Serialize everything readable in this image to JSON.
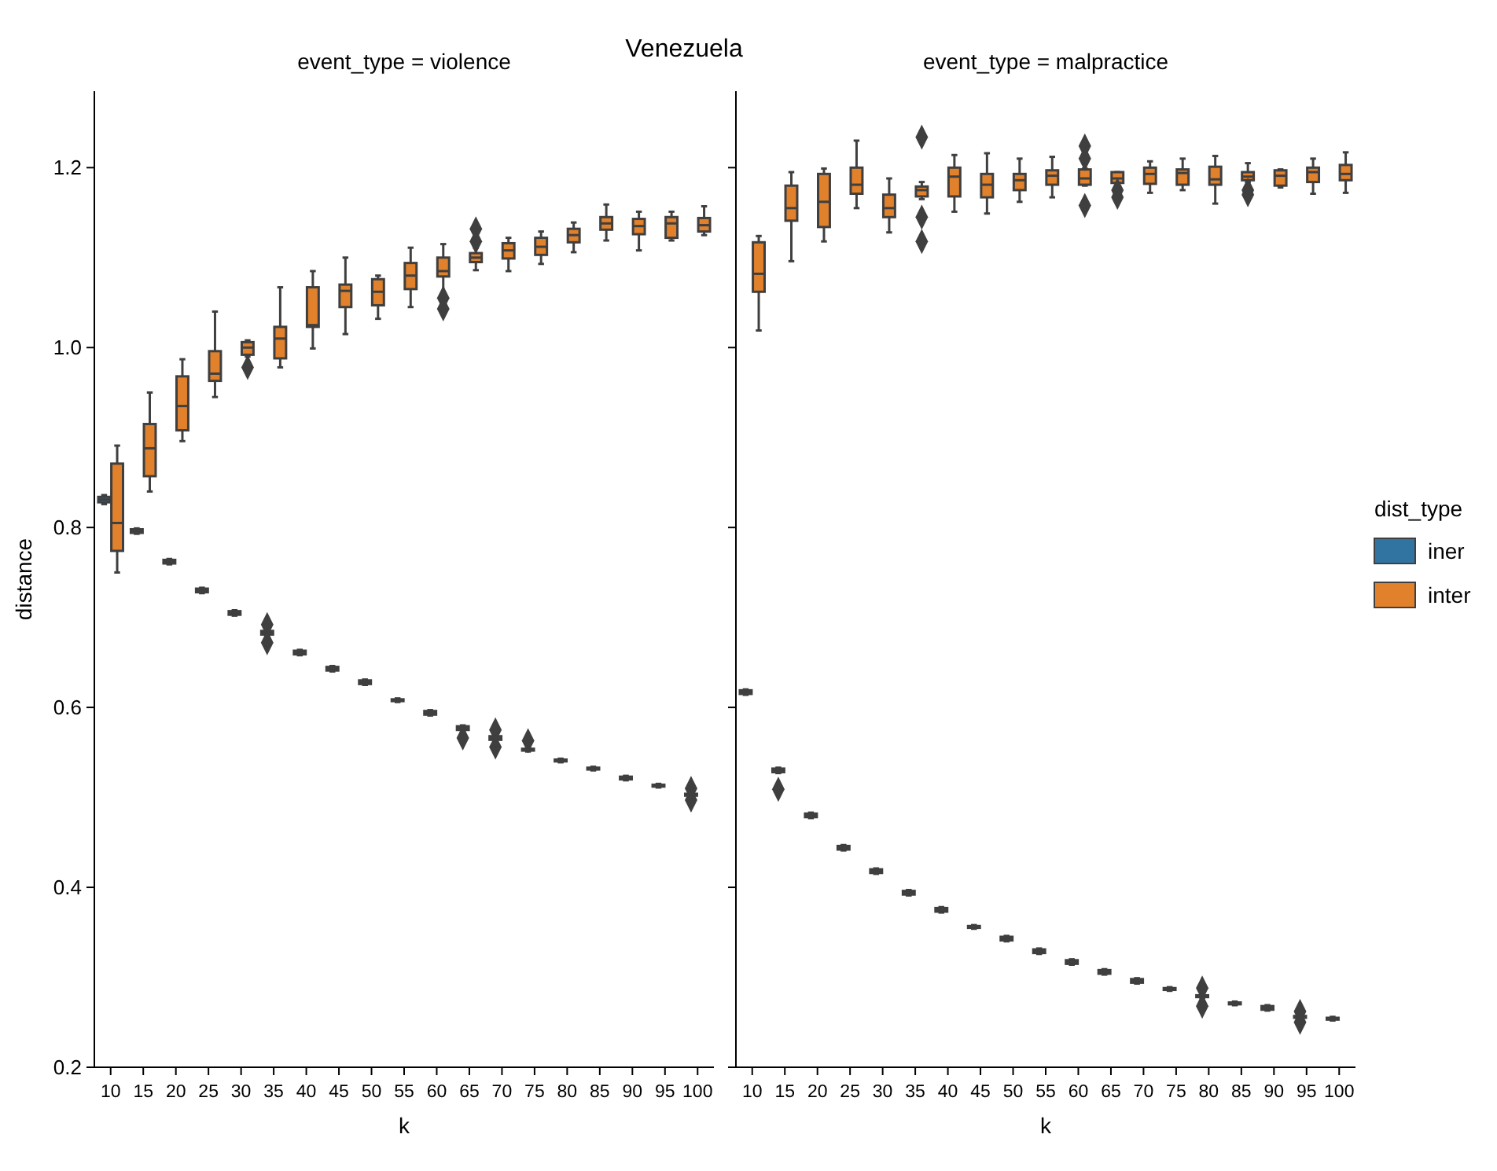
{
  "chart_data": [
    {
      "type": "box",
      "title": "event_type = violence",
      "xlabel": "k",
      "ylabel": "distance",
      "annotations": [
        "Venezuela"
      ],
      "categories": [
        "10",
        "15",
        "20",
        "25",
        "30",
        "35",
        "40",
        "45",
        "50",
        "55",
        "60",
        "65",
        "70",
        "75",
        "80",
        "85",
        "90",
        "95",
        "100"
      ],
      "ylim": [
        0.2,
        1.285
      ],
      "yticks": [
        {
          "value": 0.2,
          "label": "0.2"
        },
        {
          "value": 0.4,
          "label": "0.4"
        },
        {
          "value": 0.6,
          "label": "0.6"
        },
        {
          "value": 0.8,
          "label": "0.8"
        },
        {
          "value": 1.0,
          "label": "1.0"
        },
        {
          "value": 1.2,
          "label": "1.2"
        }
      ],
      "series": [
        {
          "color": "#3274a1",
          "boxes": [
            {
              "low": 0.826,
              "q1": 0.828,
              "median": 0.831,
              "q3": 0.834,
              "high": 0.836
            },
            {
              "low": 0.793,
              "q1": 0.794,
              "median": 0.796,
              "q3": 0.798,
              "high": 0.799
            },
            {
              "low": 0.759,
              "q1": 0.76,
              "median": 0.762,
              "q3": 0.764,
              "high": 0.765
            },
            {
              "low": 0.727,
              "q1": 0.728,
              "median": 0.73,
              "q3": 0.732,
              "high": 0.733
            },
            {
              "low": 0.702,
              "q1": 0.703,
              "median": 0.705,
              "q3": 0.707,
              "high": 0.708
            },
            {
              "low": 0.68,
              "q1": 0.681,
              "median": 0.683,
              "q3": 0.685,
              "high": 0.686,
              "outliers": [
                0.692,
                0.672
              ]
            },
            {
              "low": 0.658,
              "q1": 0.659,
              "median": 0.661,
              "q3": 0.663,
              "high": 0.664
            },
            {
              "low": 0.64,
              "q1": 0.641,
              "median": 0.643,
              "q3": 0.645,
              "high": 0.646
            },
            {
              "low": 0.625,
              "q1": 0.626,
              "median": 0.628,
              "q3": 0.63,
              "high": 0.631
            },
            {
              "low": 0.606,
              "q1": 0.607,
              "median": 0.608,
              "q3": 0.609,
              "high": 0.61
            },
            {
              "low": 0.591,
              "q1": 0.592,
              "median": 0.594,
              "q3": 0.596,
              "high": 0.597
            },
            {
              "low": 0.574,
              "q1": 0.575,
              "median": 0.577,
              "q3": 0.579,
              "high": 0.58,
              "outliers": [
                0.566
              ]
            },
            {
              "low": 0.563,
              "q1": 0.564,
              "median": 0.566,
              "q3": 0.568,
              "high": 0.569,
              "outliers": [
                0.575,
                0.556
              ]
            },
            {
              "low": 0.551,
              "q1": 0.552,
              "median": 0.553,
              "q3": 0.554,
              "high": 0.555,
              "outliers": [
                0.563
              ]
            },
            {
              "low": 0.539,
              "q1": 0.54,
              "median": 0.541,
              "q3": 0.542,
              "high": 0.543
            },
            {
              "low": 0.53,
              "q1": 0.531,
              "median": 0.532,
              "q3": 0.533,
              "high": 0.534
            },
            {
              "low": 0.519,
              "q1": 0.52,
              "median": 0.521,
              "q3": 0.523,
              "high": 0.524
            },
            {
              "low": 0.511,
              "q1": 0.512,
              "median": 0.513,
              "q3": 0.514,
              "high": 0.515
            },
            {
              "low": 0.501,
              "q1": 0.502,
              "median": 0.503,
              "q3": 0.504,
              "high": 0.505,
              "outliers": [
                0.51,
                0.497
              ]
            }
          ]
        },
        {
          "color": "#e1812c",
          "boxes": [
            {
              "low": 0.75,
              "q1": 0.774,
              "median": 0.805,
              "q3": 0.871,
              "high": 0.891
            },
            {
              "low": 0.84,
              "q1": 0.857,
              "median": 0.888,
              "q3": 0.915,
              "high": 0.95
            },
            {
              "low": 0.896,
              "q1": 0.908,
              "median": 0.935,
              "q3": 0.968,
              "high": 0.987
            },
            {
              "low": 0.945,
              "q1": 0.963,
              "median": 0.971,
              "q3": 0.996,
              "high": 1.04
            },
            {
              "low": 0.99,
              "q1": 0.992,
              "median": 1.0,
              "q3": 1.006,
              "high": 1.008,
              "outliers": [
                0.978
              ]
            },
            {
              "low": 0.978,
              "q1": 0.988,
              "median": 1.01,
              "q3": 1.023,
              "high": 1.067
            },
            {
              "low": 0.999,
              "q1": 1.023,
              "median": 1.025,
              "q3": 1.067,
              "high": 1.085
            },
            {
              "low": 1.015,
              "q1": 1.045,
              "median": 1.063,
              "q3": 1.07,
              "high": 1.1
            },
            {
              "low": 1.032,
              "q1": 1.047,
              "median": 1.062,
              "q3": 1.076,
              "high": 1.08
            },
            {
              "low": 1.045,
              "q1": 1.065,
              "median": 1.08,
              "q3": 1.094,
              "high": 1.111
            },
            {
              "low": 1.057,
              "q1": 1.079,
              "median": 1.085,
              "q3": 1.1,
              "high": 1.115,
              "outliers": [
                1.055,
                1.043
              ]
            },
            {
              "low": 1.086,
              "q1": 1.095,
              "median": 1.1,
              "q3": 1.105,
              "high": 1.111,
              "outliers": [
                1.118,
                1.132
              ]
            },
            {
              "low": 1.085,
              "q1": 1.099,
              "median": 1.108,
              "q3": 1.116,
              "high": 1.122
            },
            {
              "low": 1.093,
              "q1": 1.103,
              "median": 1.112,
              "q3": 1.122,
              "high": 1.129
            },
            {
              "low": 1.106,
              "q1": 1.117,
              "median": 1.125,
              "q3": 1.132,
              "high": 1.139
            },
            {
              "low": 1.119,
              "q1": 1.131,
              "median": 1.138,
              "q3": 1.145,
              "high": 1.159
            },
            {
              "low": 1.108,
              "q1": 1.126,
              "median": 1.135,
              "q3": 1.143,
              "high": 1.151
            },
            {
              "low": 1.119,
              "q1": 1.122,
              "median": 1.138,
              "q3": 1.145,
              "high": 1.151
            },
            {
              "low": 1.125,
              "q1": 1.129,
              "median": 1.136,
              "q3": 1.144,
              "high": 1.157
            }
          ]
        }
      ]
    },
    {
      "type": "box",
      "title": "event_type = malpractice",
      "xlabel": "k",
      "legend": "right",
      "legend_title": "dist_type",
      "tick_labels": "x",
      "categories": [
        "10",
        "15",
        "20",
        "25",
        "30",
        "35",
        "40",
        "45",
        "50",
        "55",
        "60",
        "65",
        "70",
        "75",
        "80",
        "85",
        "90",
        "95",
        "100"
      ],
      "ylim": [
        0.2,
        1.285
      ],
      "yticks": [
        {
          "value": 0.2,
          "label": null
        },
        {
          "value": 0.4,
          "label": null
        },
        {
          "value": 0.6,
          "label": null
        },
        {
          "value": 0.8,
          "label": null
        },
        {
          "value": 1.0,
          "label": null
        },
        {
          "value": 1.2,
          "label": null
        }
      ],
      "series": [
        {
          "name": "iner",
          "color": "#3274a1",
          "boxes": [
            {
              "low": 0.614,
              "q1": 0.615,
              "median": 0.617,
              "q3": 0.619,
              "high": 0.62
            },
            {
              "low": 0.527,
              "q1": 0.528,
              "median": 0.53,
              "q3": 0.532,
              "high": 0.533,
              "outliers": [
                0.509
              ]
            },
            {
              "low": 0.477,
              "q1": 0.478,
              "median": 0.48,
              "q3": 0.482,
              "high": 0.483
            },
            {
              "low": 0.441,
              "q1": 0.442,
              "median": 0.444,
              "q3": 0.446,
              "high": 0.447
            },
            {
              "low": 0.415,
              "q1": 0.416,
              "median": 0.418,
              "q3": 0.42,
              "high": 0.421
            },
            {
              "low": 0.391,
              "q1": 0.392,
              "median": 0.394,
              "q3": 0.396,
              "high": 0.397
            },
            {
              "low": 0.372,
              "q1": 0.373,
              "median": 0.375,
              "q3": 0.377,
              "high": 0.378
            },
            {
              "low": 0.354,
              "q1": 0.355,
              "median": 0.356,
              "q3": 0.357,
              "high": 0.358
            },
            {
              "low": 0.34,
              "q1": 0.341,
              "median": 0.343,
              "q3": 0.345,
              "high": 0.346
            },
            {
              "low": 0.326,
              "q1": 0.327,
              "median": 0.329,
              "q3": 0.331,
              "high": 0.332
            },
            {
              "low": 0.314,
              "q1": 0.315,
              "median": 0.317,
              "q3": 0.319,
              "high": 0.32
            },
            {
              "low": 0.303,
              "q1": 0.304,
              "median": 0.306,
              "q3": 0.308,
              "high": 0.309
            },
            {
              "low": 0.293,
              "q1": 0.294,
              "median": 0.296,
              "q3": 0.298,
              "high": 0.299
            },
            {
              "low": 0.285,
              "q1": 0.286,
              "median": 0.287,
              "q3": 0.288,
              "high": 0.289
            },
            {
              "low": 0.277,
              "q1": 0.278,
              "median": 0.279,
              "q3": 0.28,
              "high": 0.281,
              "outliers": [
                0.288,
                0.268
              ]
            },
            {
              "low": 0.269,
              "q1": 0.27,
              "median": 0.271,
              "q3": 0.272,
              "high": 0.273
            },
            {
              "low": 0.263,
              "q1": 0.264,
              "median": 0.266,
              "q3": 0.268,
              "high": 0.269
            },
            {
              "low": 0.254,
              "q1": 0.255,
              "median": 0.256,
              "q3": 0.257,
              "high": 0.258,
              "outliers": [
                0.262,
                0.25
              ]
            },
            {
              "low": 0.252,
              "q1": 0.253,
              "median": 0.254,
              "q3": 0.255,
              "high": 0.256
            }
          ]
        },
        {
          "name": "inter",
          "color": "#e1812c",
          "boxes": [
            {
              "low": 1.019,
              "q1": 1.062,
              "median": 1.082,
              "q3": 1.117,
              "high": 1.124
            },
            {
              "low": 1.096,
              "q1": 1.141,
              "median": 1.155,
              "q3": 1.18,
              "high": 1.195
            },
            {
              "low": 1.118,
              "q1": 1.134,
              "median": 1.162,
              "q3": 1.193,
              "high": 1.199
            },
            {
              "low": 1.155,
              "q1": 1.171,
              "median": 1.181,
              "q3": 1.2,
              "high": 1.23
            },
            {
              "low": 1.128,
              "q1": 1.145,
              "median": 1.155,
              "q3": 1.17,
              "high": 1.188
            },
            {
              "low": 1.165,
              "q1": 1.168,
              "median": 1.175,
              "q3": 1.179,
              "high": 1.184,
              "outliers": [
                1.234,
                1.145,
                1.118
              ]
            },
            {
              "low": 1.151,
              "q1": 1.168,
              "median": 1.19,
              "q3": 1.2,
              "high": 1.214
            },
            {
              "low": 1.149,
              "q1": 1.167,
              "median": 1.181,
              "q3": 1.193,
              "high": 1.216
            },
            {
              "low": 1.162,
              "q1": 1.175,
              "median": 1.186,
              "q3": 1.193,
              "high": 1.21
            },
            {
              "low": 1.167,
              "q1": 1.181,
              "median": 1.191,
              "q3": 1.197,
              "high": 1.212
            },
            {
              "low": 1.18,
              "q1": 1.181,
              "median": 1.188,
              "q3": 1.198,
              "high": 1.199,
              "outliers": [
                1.224,
                1.21,
                1.158
              ]
            },
            {
              "low": 1.183,
              "q1": 1.183,
              "median": 1.188,
              "q3": 1.195,
              "high": 1.195,
              "outliers": [
                1.175,
                1.167
              ]
            },
            {
              "low": 1.172,
              "q1": 1.182,
              "median": 1.193,
              "q3": 1.2,
              "high": 1.207
            },
            {
              "low": 1.175,
              "q1": 1.181,
              "median": 1.194,
              "q3": 1.198,
              "high": 1.21
            },
            {
              "low": 1.16,
              "q1": 1.181,
              "median": 1.187,
              "q3": 1.201,
              "high": 1.213
            },
            {
              "low": 1.184,
              "q1": 1.186,
              "median": 1.19,
              "q3": 1.195,
              "high": 1.205,
              "outliers": [
                1.175,
                1.17
              ]
            },
            {
              "low": 1.178,
              "q1": 1.18,
              "median": 1.191,
              "q3": 1.197,
              "high": 1.198
            },
            {
              "low": 1.171,
              "q1": 1.184,
              "median": 1.195,
              "q3": 1.2,
              "high": 1.21
            },
            {
              "low": 1.172,
              "q1": 1.186,
              "median": 1.193,
              "q3": 1.203,
              "high": 1.217
            }
          ]
        }
      ]
    }
  ]
}
